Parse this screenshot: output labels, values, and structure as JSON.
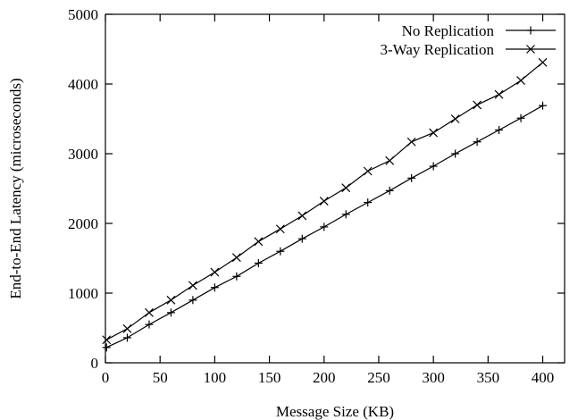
{
  "chart_data": {
    "type": "line",
    "title": "",
    "xlabel": "Message Size (KB)",
    "ylabel": "End-to-End Latency (microseconds)",
    "xlim": [
      0,
      420
    ],
    "ylim": [
      0,
      5000
    ],
    "xticks": [
      0,
      50,
      100,
      150,
      200,
      250,
      300,
      350,
      400
    ],
    "yticks": [
      0,
      1000,
      2000,
      3000,
      4000,
      5000
    ],
    "grid": false,
    "legend_position": "top-right",
    "series": [
      {
        "name": "No Replication",
        "marker": "plus",
        "color": "#000000",
        "x": [
          1,
          20,
          40,
          60,
          80,
          100,
          120,
          140,
          160,
          180,
          200,
          220,
          240,
          260,
          280,
          300,
          320,
          340,
          360,
          380,
          400
        ],
        "y": [
          220,
          360,
          550,
          720,
          900,
          1080,
          1240,
          1430,
          1600,
          1780,
          1950,
          2130,
          2300,
          2470,
          2650,
          2820,
          3000,
          3170,
          3340,
          3510,
          3690
        ]
      },
      {
        "name": "3-Way Replication",
        "marker": "cross",
        "color": "#000000",
        "x": [
          1,
          20,
          40,
          60,
          80,
          100,
          120,
          140,
          160,
          180,
          200,
          220,
          240,
          260,
          280,
          300,
          320,
          340,
          360,
          380,
          400
        ],
        "y": [
          330,
          490,
          720,
          900,
          1110,
          1300,
          1510,
          1740,
          1920,
          2110,
          2320,
          2510,
          2750,
          2900,
          3170,
          3300,
          3500,
          3700,
          3850,
          4050,
          4310
        ]
      }
    ]
  }
}
